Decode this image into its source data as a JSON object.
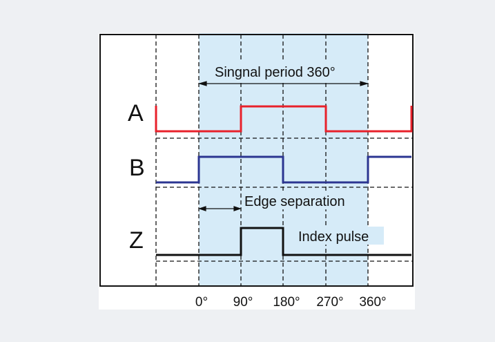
{
  "diagram": {
    "signal_labels": {
      "A": "A",
      "B": "B",
      "Z": "Z"
    },
    "annotations": {
      "period": "Singnal period 360°",
      "edge": "Edge separation",
      "index": "Index pulse"
    },
    "degree_ticks": [
      "0°",
      "90°",
      "180°",
      "270°",
      "360°"
    ],
    "colors": {
      "background": "#eef0f3",
      "panel": "#ffffff",
      "shaded_region": "#d6ebf8",
      "signal_A": "#e8212b",
      "signal_B": "#2b3591",
      "signal_Z": "#111111",
      "frame": "#111111"
    }
  }
}
